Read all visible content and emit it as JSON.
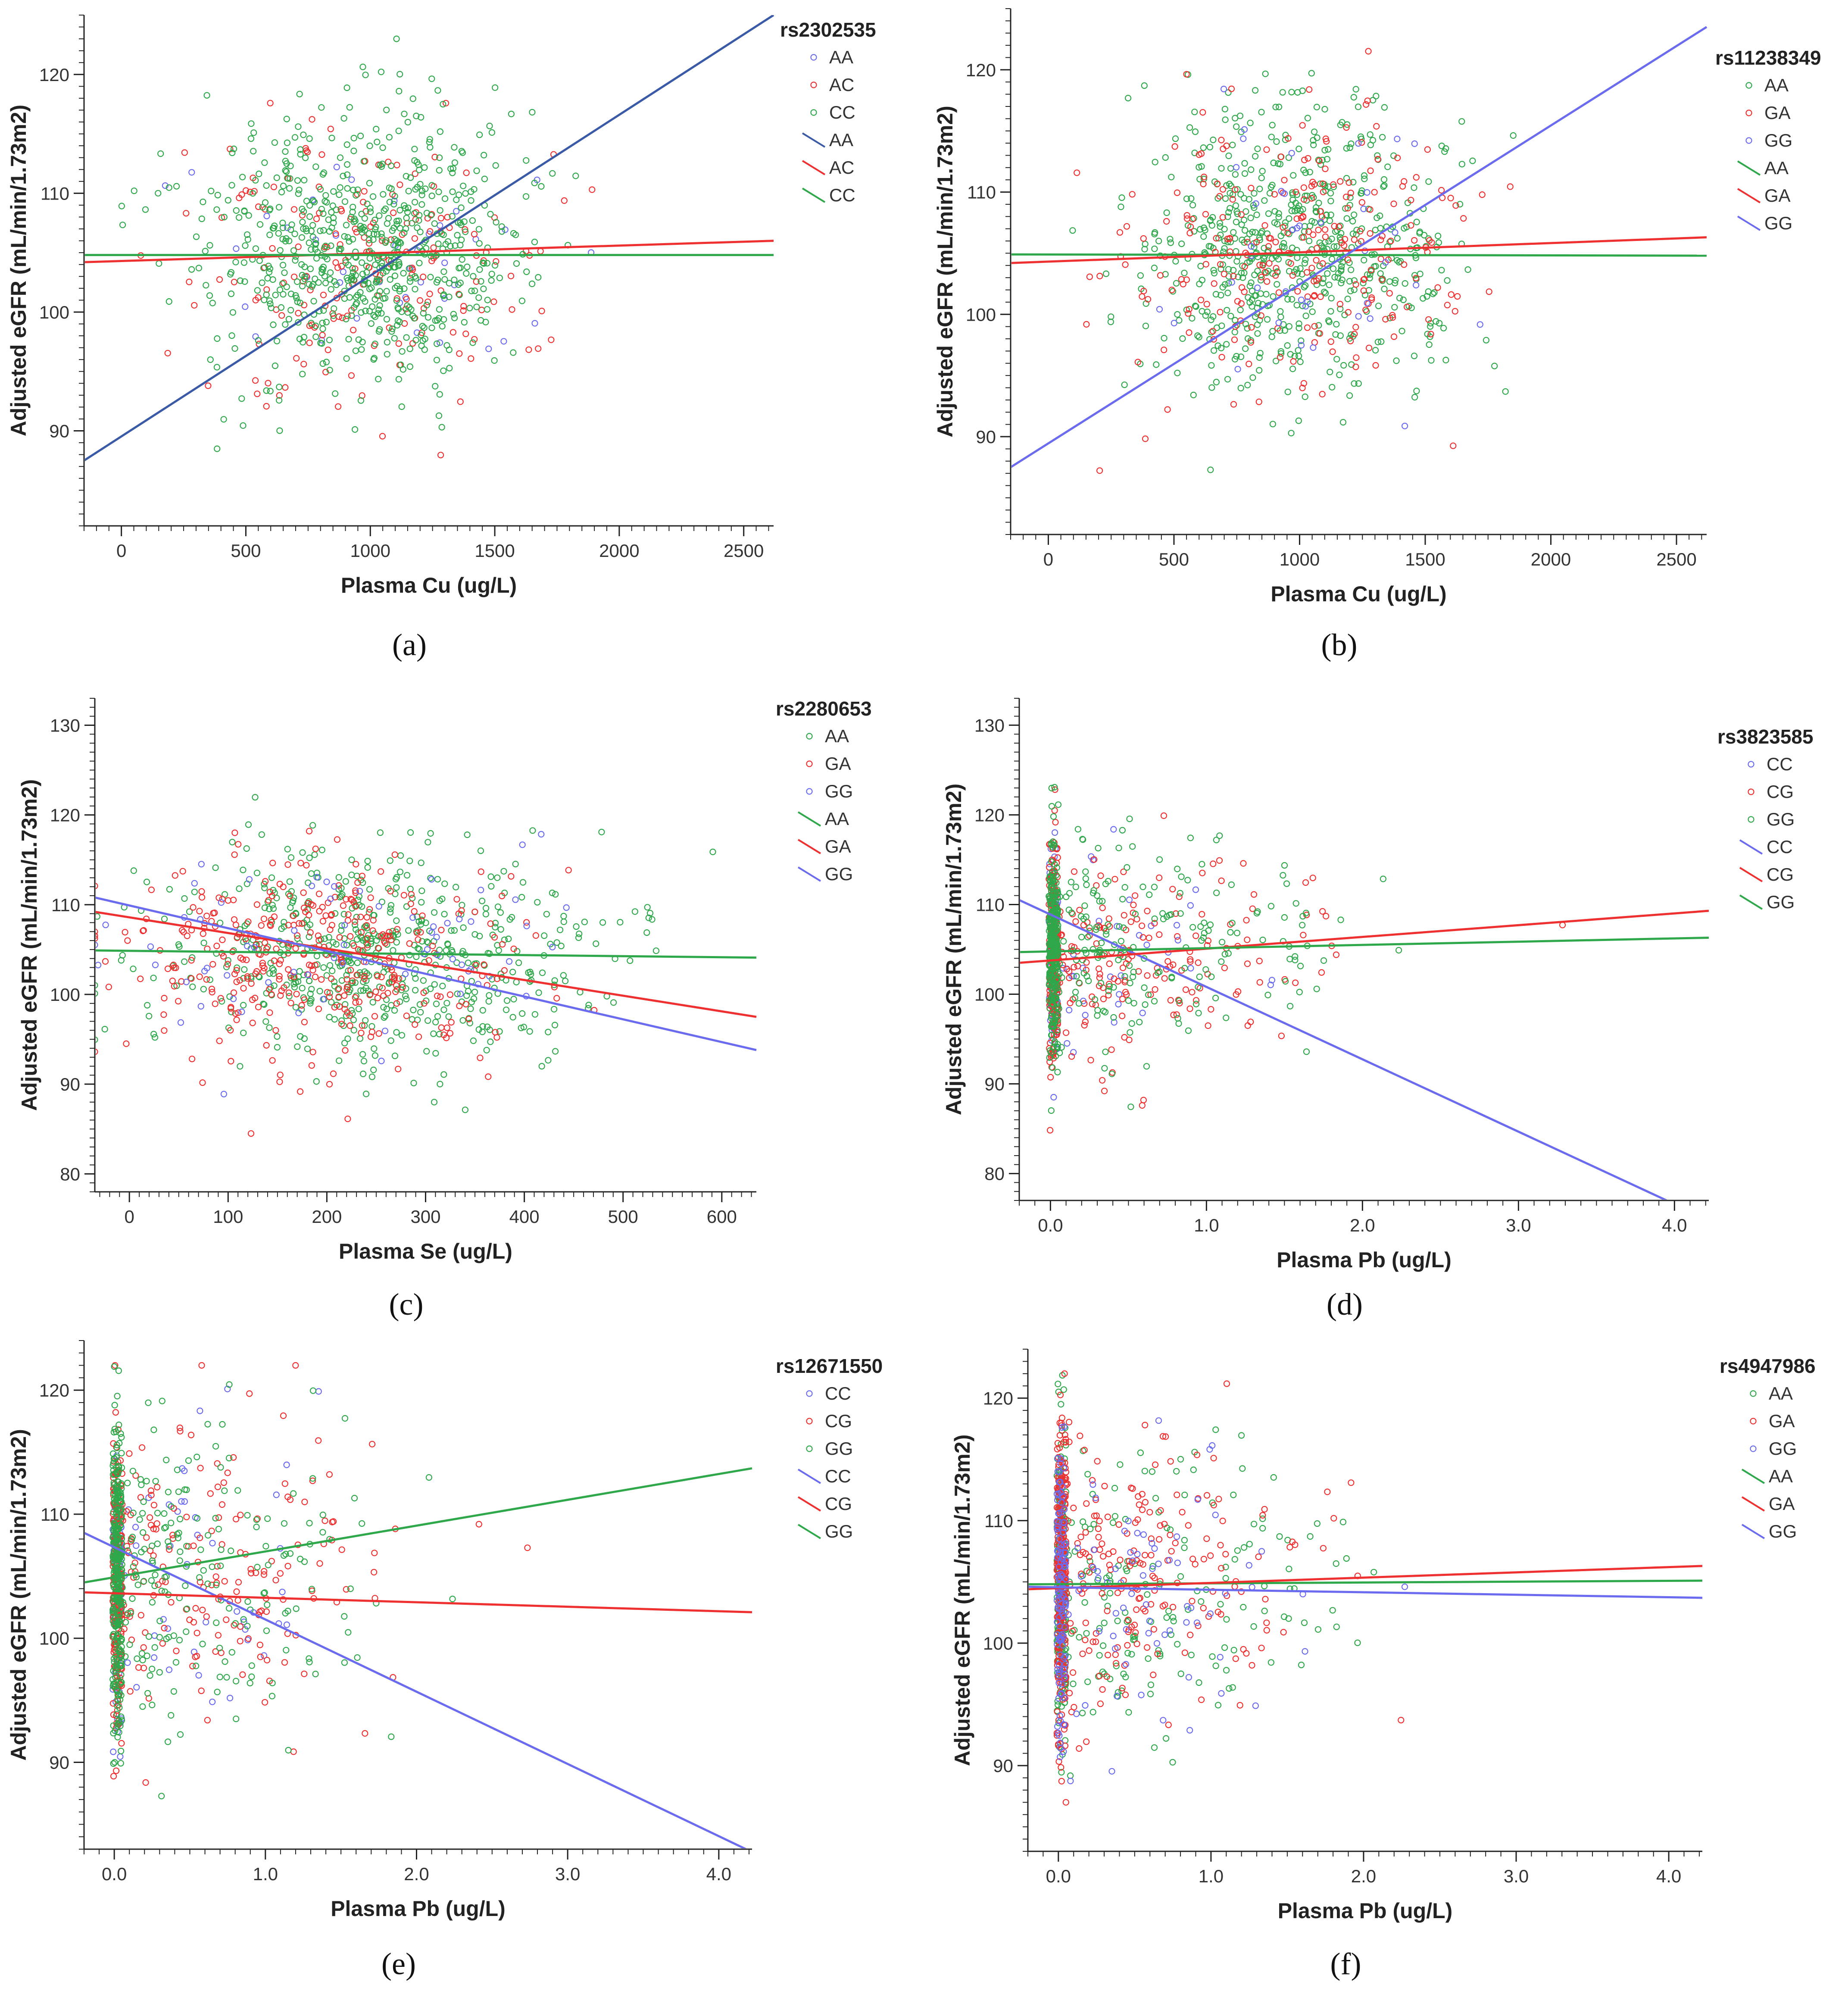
{
  "colors": {
    "blue": "#6b6bf0",
    "red": "#ee3030",
    "green": "#2ea84a",
    "navy": "#3a5aa8",
    "axis": "#222222"
  },
  "chart_data": [
    {
      "type": "scatter",
      "panel_label": "(a)",
      "legend_title": "rs2302535",
      "title": "",
      "xlabel": "Plasma Cu (ug/L)",
      "ylabel": "Adjusted eGFR (mL/min/1.73m2)",
      "xlim": [
        -150,
        2620
      ],
      "ylim": [
        82,
        125
      ],
      "x_ticks": [
        0,
        500,
        1000,
        1500,
        2000,
        2500
      ],
      "x_ticklabels": [
        "0",
        "500",
        "1000",
        "1500",
        "2000",
        "2500"
      ],
      "y_ticks": [
        90,
        100,
        110,
        120
      ],
      "y_ticklabels": [
        "90",
        "100",
        "110",
        "120"
      ],
      "series": [
        {
          "name": "AA",
          "kind": "points",
          "color": "#6b6bf0",
          "n": 40,
          "distribution": "normal",
          "x_center": 1000,
          "x_spread": 330,
          "y_center": 104,
          "y_spread": 5.5
        },
        {
          "name": "AC",
          "kind": "points",
          "color": "#ee3030",
          "n": 200,
          "distribution": "normal",
          "x_center": 1000,
          "x_spread": 340,
          "y_center": 104.5,
          "y_spread": 5.5
        },
        {
          "name": "CC",
          "kind": "points",
          "color": "#2ea84a",
          "n": 700,
          "distribution": "normal",
          "x_center": 980,
          "x_spread": 320,
          "y_center": 105,
          "y_spread": 5.8
        },
        {
          "name": "AA",
          "kind": "fit",
          "color": "#3a5aa8",
          "x": [
            -150,
            2620
          ],
          "y": [
            87.5,
            125
          ]
        },
        {
          "name": "AC",
          "kind": "fit",
          "color": "#ee3030",
          "x": [
            -150,
            2620
          ],
          "y": [
            104.2,
            106
          ]
        },
        {
          "name": "CC",
          "kind": "fit",
          "color": "#2ea84a",
          "x": [
            -150,
            2620
          ],
          "y": [
            104.8,
            104.8
          ]
        }
      ]
    },
    {
      "type": "scatter",
      "panel_label": "(b)",
      "legend_title": "rs11238349",
      "title": "",
      "xlabel": "Plasma Cu (ug/L)",
      "ylabel": "Adjusted eGFR (mL/min/1.73m2)",
      "xlim": [
        -150,
        2620
      ],
      "ylim": [
        82,
        125
      ],
      "x_ticks": [
        0,
        500,
        1000,
        1500,
        2000,
        2500
      ],
      "x_ticklabels": [
        "0",
        "500",
        "1000",
        "1500",
        "2000",
        "2500"
      ],
      "y_ticks": [
        90,
        100,
        110,
        120
      ],
      "y_ticklabels": [
        "90",
        "100",
        "110",
        "120"
      ],
      "series": [
        {
          "name": "AA",
          "kind": "points",
          "color": "#2ea84a",
          "n": 650,
          "distribution": "normal",
          "x_center": 980,
          "x_spread": 320,
          "y_center": 105,
          "y_spread": 5.8
        },
        {
          "name": "GA",
          "kind": "points",
          "color": "#ee3030",
          "n": 260,
          "distribution": "normal",
          "x_center": 1000,
          "x_spread": 340,
          "y_center": 104.5,
          "y_spread": 5.5
        },
        {
          "name": "GG",
          "kind": "points",
          "color": "#6b6bf0",
          "n": 40,
          "distribution": "normal",
          "x_center": 1000,
          "x_spread": 330,
          "y_center": 104,
          "y_spread": 5.5
        },
        {
          "name": "AA",
          "kind": "fit",
          "color": "#2ea84a",
          "x": [
            -150,
            2620
          ],
          "y": [
            104.9,
            104.8
          ]
        },
        {
          "name": "GA",
          "kind": "fit",
          "color": "#ee3030",
          "x": [
            -150,
            2620
          ],
          "y": [
            104.2,
            106.3
          ]
        },
        {
          "name": "GG",
          "kind": "fit",
          "color": "#6b6bf0",
          "x": [
            -150,
            2620
          ],
          "y": [
            87.5,
            123.5
          ]
        }
      ]
    },
    {
      "type": "scatter",
      "panel_label": "(c)",
      "legend_title": "rs2280653",
      "title": "",
      "xlabel": "Plasma Se (ug/L)",
      "ylabel": "Adjusted eGFR (mL/min/1.73m2)",
      "xlim": [
        -35,
        635
      ],
      "ylim": [
        78,
        133
      ],
      "x_ticks": [
        0,
        100,
        200,
        300,
        400,
        500,
        600
      ],
      "x_ticklabels": [
        "0",
        "100",
        "200",
        "300",
        "400",
        "500",
        "600"
      ],
      "y_ticks": [
        80,
        90,
        100,
        110,
        120,
        130
      ],
      "y_ticklabels": [
        "80",
        "90",
        "100",
        "110",
        "120",
        "130"
      ],
      "series": [
        {
          "name": "AA",
          "kind": "points",
          "color": "#2ea84a",
          "n": 600,
          "distribution": "normal",
          "x_center": 250,
          "x_spread": 110,
          "y_center": 104.5,
          "y_spread": 6
        },
        {
          "name": "GA",
          "kind": "points",
          "color": "#ee3030",
          "n": 380,
          "distribution": "normal",
          "x_center": 180,
          "x_spread": 100,
          "y_center": 104.5,
          "y_spread": 6
        },
        {
          "name": "GG",
          "kind": "points",
          "color": "#6b6bf0",
          "n": 70,
          "distribution": "normal",
          "x_center": 200,
          "x_spread": 110,
          "y_center": 104,
          "y_spread": 6
        },
        {
          "name": "AA",
          "kind": "fit",
          "color": "#2ea84a",
          "x": [
            -35,
            635
          ],
          "y": [
            104.9,
            104.1
          ]
        },
        {
          "name": "GA",
          "kind": "fit",
          "color": "#ee3030",
          "x": [
            -35,
            635
          ],
          "y": [
            109.2,
            97.5
          ]
        },
        {
          "name": "GG",
          "kind": "fit",
          "color": "#6b6bf0",
          "x": [
            -35,
            635
          ],
          "y": [
            110.8,
            93.8
          ]
        }
      ]
    },
    {
      "type": "scatter",
      "panel_label": "(d)",
      "legend_title": "rs3823585",
      "title": "",
      "xlabel": "Plasma Pb (ug/L)",
      "ylabel": "Adjusted eGFR (mL/min/1.73m2)",
      "xlim": [
        -0.2,
        4.22
      ],
      "ylim": [
        77,
        133
      ],
      "x_ticks": [
        0,
        1,
        2,
        3,
        4
      ],
      "x_ticklabels": [
        "0.0",
        "1.0",
        "2.0",
        "3.0",
        "4.0"
      ],
      "y_ticks": [
        80,
        90,
        100,
        110,
        120,
        130
      ],
      "y_ticklabels": [
        "80",
        "90",
        "100",
        "110",
        "120",
        "130"
      ],
      "series": [
        {
          "name": "CC",
          "kind": "points",
          "color": "#6b6bf0",
          "n": 120,
          "distribution": "vertical_band_plus_scatter",
          "band_fraction": 0.75,
          "x_center": 0.02,
          "x_spread": 0.5,
          "y_center": 104.5,
          "y_spread": 6
        },
        {
          "name": "CG",
          "kind": "points",
          "color": "#ee3030",
          "n": 400,
          "distribution": "vertical_band_plus_scatter",
          "band_fraction": 0.6,
          "x_center": 0.02,
          "x_spread": 0.8,
          "y_center": 104.5,
          "y_spread": 6
        },
        {
          "name": "GG",
          "kind": "points",
          "color": "#2ea84a",
          "n": 480,
          "distribution": "vertical_band_plus_scatter",
          "band_fraction": 0.6,
          "x_center": 0.02,
          "x_spread": 0.8,
          "y_center": 105,
          "y_spread": 6
        },
        {
          "name": "CC",
          "kind": "fit",
          "color": "#6b6bf0",
          "x": [
            -0.2,
            3.95
          ],
          "y": [
            110.5,
            77
          ]
        },
        {
          "name": "CG",
          "kind": "fit",
          "color": "#ee3030",
          "x": [
            -0.2,
            4.22
          ],
          "y": [
            103.5,
            109.3
          ]
        },
        {
          "name": "GG",
          "kind": "fit",
          "color": "#2ea84a",
          "x": [
            -0.2,
            4.22
          ],
          "y": [
            104.7,
            106.3
          ]
        }
      ]
    },
    {
      "type": "scatter",
      "panel_label": "(e)",
      "legend_title": "rs12671550",
      "title": "",
      "xlabel": "Plasma Pb (ug/L)",
      "ylabel": "Adjusted eGFR (mL/min/1.73m2)",
      "xlim": [
        -0.2,
        4.22
      ],
      "ylim": [
        83,
        124
      ],
      "x_ticks": [
        0,
        1,
        2,
        3,
        4
      ],
      "x_ticklabels": [
        "0.0",
        "1.0",
        "2.0",
        "3.0",
        "4.0"
      ],
      "y_ticks": [
        90,
        100,
        110,
        120
      ],
      "y_ticklabels": [
        "90",
        "100",
        "110",
        "120"
      ],
      "series": [
        {
          "name": "CC",
          "kind": "points",
          "color": "#6b6bf0",
          "n": 120,
          "distribution": "vertical_band_plus_scatter",
          "band_fraction": 0.7,
          "x_center": 0.02,
          "x_spread": 0.6,
          "y_center": 104.5,
          "y_spread": 6
        },
        {
          "name": "CG",
          "kind": "points",
          "color": "#ee3030",
          "n": 380,
          "distribution": "vertical_band_plus_scatter",
          "band_fraction": 0.55,
          "x_center": 0.02,
          "x_spread": 0.8,
          "y_center": 104.5,
          "y_spread": 6
        },
        {
          "name": "GG",
          "kind": "points",
          "color": "#2ea84a",
          "n": 500,
          "distribution": "vertical_band_plus_scatter",
          "band_fraction": 0.6,
          "x_center": 0.02,
          "x_spread": 0.8,
          "y_center": 105,
          "y_spread": 6
        },
        {
          "name": "CC",
          "kind": "fit",
          "color": "#6b6bf0",
          "x": [
            -0.2,
            4.18
          ],
          "y": [
            108.5,
            83
          ]
        },
        {
          "name": "CG",
          "kind": "fit",
          "color": "#ee3030",
          "x": [
            -0.2,
            4.22
          ],
          "y": [
            103.7,
            102.1
          ]
        },
        {
          "name": "GG",
          "kind": "fit",
          "color": "#2ea84a",
          "x": [
            -0.2,
            4.22
          ],
          "y": [
            104.5,
            113.7
          ]
        }
      ]
    },
    {
      "type": "scatter",
      "panel_label": "(f)",
      "legend_title": "rs4947986",
      "title": "",
      "xlabel": "Plasma Pb (ug/L)",
      "ylabel": "Adjusted eGFR (mL/min/1.73m2)",
      "xlim": [
        -0.2,
        4.22
      ],
      "ylim": [
        83,
        124
      ],
      "x_ticks": [
        0,
        1,
        2,
        3,
        4
      ],
      "x_ticklabels": [
        "0.0",
        "1.0",
        "2.0",
        "3.0",
        "4.0"
      ],
      "y_ticks": [
        90,
        100,
        110,
        120
      ],
      "y_ticklabels": [
        "90",
        "100",
        "110",
        "120"
      ],
      "series": [
        {
          "name": "AA",
          "kind": "points",
          "color": "#2ea84a",
          "n": 380,
          "distribution": "vertical_band_plus_scatter",
          "band_fraction": 0.55,
          "x_center": 0.02,
          "x_spread": 0.8,
          "y_center": 104.5,
          "y_spread": 6
        },
        {
          "name": "GA",
          "kind": "points",
          "color": "#ee3030",
          "n": 480,
          "distribution": "vertical_band_plus_scatter",
          "band_fraction": 0.6,
          "x_center": 0.02,
          "x_spread": 0.8,
          "y_center": 104.8,
          "y_spread": 6
        },
        {
          "name": "GG",
          "kind": "points",
          "color": "#6b6bf0",
          "n": 200,
          "distribution": "vertical_band_plus_scatter",
          "band_fraction": 0.65,
          "x_center": 0.02,
          "x_spread": 0.7,
          "y_center": 104.5,
          "y_spread": 6
        },
        {
          "name": "AA",
          "kind": "fit",
          "color": "#2ea84a",
          "x": [
            -0.2,
            4.22
          ],
          "y": [
            104.8,
            105.1
          ]
        },
        {
          "name": "GA",
          "kind": "fit",
          "color": "#ee3030",
          "x": [
            -0.2,
            4.22
          ],
          "y": [
            104.4,
            106.3
          ]
        },
        {
          "name": "GG",
          "kind": "fit",
          "color": "#6b6bf0",
          "x": [
            -0.2,
            4.22
          ],
          "y": [
            104.6,
            103.7
          ]
        }
      ]
    }
  ]
}
